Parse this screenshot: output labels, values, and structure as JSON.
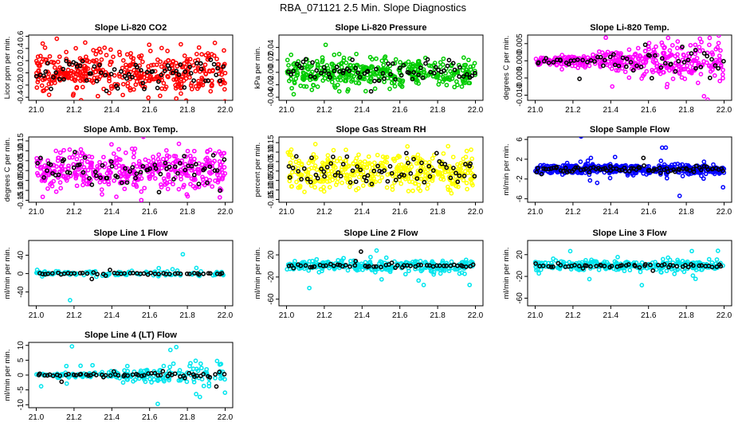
{
  "figure_title": "RBA_071121  2.5 Min. Slope Diagnostics",
  "chart_data": [
    {
      "type": "scatter",
      "title": "Slope Li-820 CO2",
      "ylabel": "Licor ppm per min.",
      "xlim": [
        21.0,
        22.0
      ],
      "ylim": [
        -0.45,
        0.62
      ],
      "xticks": [
        21.0,
        21.2,
        21.4,
        21.6,
        21.8,
        22.0
      ],
      "xtick_labels": [
        "21.0",
        "21.2",
        "21.4",
        "21.6",
        "21.8",
        "22.0"
      ],
      "yticks": [
        -0.4,
        -0.2,
        0.0,
        0.2,
        0.4,
        0.6
      ],
      "ytick_labels": [
        "-0.4",
        "-0.2",
        "0.0",
        "0.2",
        "0.4",
        "0.6"
      ],
      "color": "#ff0000",
      "n_colored": 420,
      "n_black": 70,
      "spread": 0.17,
      "spread_black": 0.12,
      "outlier_prob": 0.02,
      "outlier_scale": 2.5
    },
    {
      "type": "scatter",
      "title": "Slope Li-820 Pressure",
      "ylabel": "kPa per min.",
      "xlim": [
        21.0,
        22.0
      ],
      "ylim": [
        -0.045,
        0.06
      ],
      "xticks": [
        21.0,
        21.2,
        21.4,
        21.6,
        21.8,
        22.0
      ],
      "xtick_labels": [
        "21.0",
        "21.2",
        "21.4",
        "21.6",
        "21.8",
        "22.0"
      ],
      "yticks": [
        -0.04,
        -0.02,
        0.0,
        0.02,
        0.04
      ],
      "ytick_labels": [
        "-0.04",
        "-0.02",
        "0.00",
        "0.02",
        "0.04"
      ],
      "color": "#00cc00",
      "n_colored": 420,
      "n_black": 70,
      "spread": 0.012,
      "spread_black": 0.008,
      "outlier_prob": 0.02,
      "outlier_scale": 3
    },
    {
      "type": "scatter",
      "title": "Slope Li-820 Temp.",
      "ylabel": "degrees C per min.",
      "xlim": [
        21.0,
        22.0
      ],
      "ylim": [
        -0.0115,
        0.0075
      ],
      "xticks": [
        21.0,
        21.2,
        21.4,
        21.6,
        21.8,
        22.0
      ],
      "xtick_labels": [
        "21.0",
        "21.2",
        "21.4",
        "21.6",
        "21.8",
        "22.0"
      ],
      "yticks": [
        -0.01,
        -0.005,
        0.0,
        0.005
      ],
      "ytick_labels": [
        "-0.010",
        "-0.005",
        "0.000",
        "0.005"
      ],
      "color": "#ff00ff",
      "n_colored": 380,
      "n_black": 60,
      "spread": 0.0028,
      "spread_black": 0.002,
      "outlier_prob": 0.01,
      "outlier_scale": 2,
      "growing": true
    },
    {
      "type": "scatter",
      "title": "Slope Amb. Box Temp.",
      "ylabel": "degrees C per min.",
      "xlim": [
        21.0,
        22.0
      ],
      "ylim": [
        -0.16,
        0.17
      ],
      "xticks": [
        21.0,
        21.2,
        21.4,
        21.6,
        21.8,
        22.0
      ],
      "xtick_labels": [
        "21.0",
        "21.2",
        "21.4",
        "21.6",
        "21.8",
        "22.0"
      ],
      "yticks": [
        -0.15,
        -0.1,
        -0.05,
        0.0,
        0.05,
        0.1,
        0.15
      ],
      "ytick_labels": [
        "-0.15",
        "-0.10",
        "-0.05",
        "0.00",
        "0.05",
        "0.10",
        "0.15"
      ],
      "color": "#ff00ff",
      "n_colored": 420,
      "n_black": 70,
      "spread": 0.05,
      "spread_black": 0.04,
      "outlier_prob": 0.01,
      "outlier_scale": 2
    },
    {
      "type": "scatter",
      "title": "Slope Gas Stream RH",
      "ylabel": "percent per min.",
      "xlim": [
        21.0,
        22.0
      ],
      "ylim": [
        -0.165,
        0.18
      ],
      "xticks": [
        21.0,
        21.2,
        21.4,
        21.6,
        21.8,
        22.0
      ],
      "xtick_labels": [
        "21.0",
        "21.2",
        "21.4",
        "21.6",
        "21.8",
        "22.0"
      ],
      "yticks": [
        -0.15,
        -0.1,
        -0.05,
        0.0,
        0.05,
        0.1,
        0.15
      ],
      "ytick_labels": [
        "-0.15",
        "-0.10",
        "-0.05",
        "0.00",
        "0.05",
        "0.10",
        "0.15"
      ],
      "color": "#ffff00",
      "n_colored": 420,
      "n_black": 70,
      "spread": 0.05,
      "spread_black": 0.04,
      "outlier_prob": 0.01,
      "outlier_scale": 2
    },
    {
      "type": "scatter",
      "title": "Slope Sample Flow",
      "ylabel": "ml/min per min.",
      "xlim": [
        21.0,
        22.0
      ],
      "ylim": [
        -6.7,
        6.5
      ],
      "xticks": [
        21.0,
        21.2,
        21.4,
        21.6,
        21.8,
        22.0
      ],
      "xtick_labels": [
        "21.0",
        "21.2",
        "21.4",
        "21.6",
        "21.8",
        "22.0"
      ],
      "yticks": [
        -6,
        -2,
        2,
        6
      ],
      "ytick_labels": [
        "-6",
        "-2",
        "2",
        "6"
      ],
      "color": "#0000ff",
      "n_colored": 420,
      "n_black": 80,
      "spread": 0.5,
      "spread_black": 0.3,
      "outlier_prob": 0.04,
      "outlier_scale": 6
    },
    {
      "type": "scatter",
      "title": "Slope Line 1 Flow",
      "ylabel": "ml/min per min.",
      "xlim": [
        21.0,
        22.0
      ],
      "ylim": [
        -70,
        72
      ],
      "xticks": [
        21.0,
        21.2,
        21.4,
        21.6,
        21.8,
        22.0
      ],
      "xtick_labels": [
        "21.0",
        "21.2",
        "21.4",
        "21.6",
        "21.8",
        "22.0"
      ],
      "yticks": [
        -40,
        0,
        40
      ],
      "ytick_labels": [
        "-40",
        "0",
        "40"
      ],
      "color": "#00e5ee",
      "n_colored": 120,
      "n_black": 50,
      "spread": 3,
      "spread_black": 1,
      "outlier_prob": 0.08,
      "outlier_scale": 10
    },
    {
      "type": "scatter",
      "title": "Slope Line 2 Flow",
      "ylabel": "ml/min per min.",
      "xlim": [
        21.0,
        22.0
      ],
      "ylim": [
        -72,
        46
      ],
      "xticks": [
        21.0,
        21.2,
        21.4,
        21.6,
        21.8,
        22.0
      ],
      "xtick_labels": [
        "21.0",
        "21.2",
        "21.4",
        "21.6",
        "21.8",
        "22.0"
      ],
      "yticks": [
        -60,
        -20,
        20
      ],
      "ytick_labels": [
        "-60",
        "-20",
        "20"
      ],
      "color": "#00e5ee",
      "n_colored": 300,
      "n_black": 55,
      "spread": 5,
      "spread_black": 2,
      "outlier_prob": 0.05,
      "outlier_scale": 6
    },
    {
      "type": "scatter",
      "title": "Slope Line 3 Flow",
      "ylabel": "ml/min per min.",
      "xlim": [
        21.0,
        22.0
      ],
      "ylim": [
        -74,
        46
      ],
      "xticks": [
        21.0,
        21.2,
        21.4,
        21.6,
        21.8,
        22.0
      ],
      "xtick_labels": [
        "21.0",
        "21.2",
        "21.4",
        "21.6",
        "21.8",
        "22.0"
      ],
      "yticks": [
        -60,
        -20,
        20
      ],
      "ytick_labels": [
        "-60",
        "-20",
        "20"
      ],
      "color": "#00e5ee",
      "n_colored": 300,
      "n_black": 55,
      "spread": 5,
      "spread_black": 2,
      "outlier_prob": 0.05,
      "outlier_scale": 6
    },
    {
      "type": "scatter",
      "title": "Slope Line 4 (LT) Flow",
      "ylabel": "ml/min per min.",
      "xlim": [
        21.0,
        22.0
      ],
      "ylim": [
        -11,
        11
      ],
      "xticks": [
        21.0,
        21.2,
        21.4,
        21.6,
        21.8,
        22.0
      ],
      "xtick_labels": [
        "21.0",
        "21.2",
        "21.4",
        "21.6",
        "21.8",
        "22.0"
      ],
      "yticks": [
        -10,
        -5,
        0,
        5,
        10
      ],
      "ytick_labels": [
        "-10",
        "-5",
        "0",
        "5",
        "10"
      ],
      "color": "#00e5ee",
      "n_colored": 220,
      "n_black": 60,
      "spread": 1.5,
      "spread_black": 0.6,
      "outlier_prob": 0.08,
      "outlier_scale": 4,
      "growing": true
    }
  ]
}
